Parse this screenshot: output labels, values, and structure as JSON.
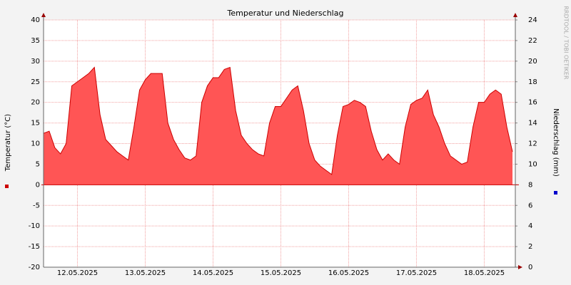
{
  "chart_data": {
    "type": "area",
    "title": "Temperatur und Niederschlag",
    "ylabel": "Temperatur (°C)",
    "y2label": "Niederschlag (mm)",
    "side_text": "RRDTOOL / TOBI OETIKER",
    "x": [
      0,
      2,
      4,
      6,
      8,
      10,
      12,
      14,
      16,
      18,
      20,
      22,
      24,
      26,
      28,
      30,
      32,
      34,
      36,
      38,
      40,
      42,
      44,
      46,
      48,
      50,
      52,
      54,
      56,
      58,
      60,
      62,
      64,
      66,
      68,
      70,
      72,
      74,
      76,
      78,
      80,
      82,
      84,
      86,
      88,
      90,
      92,
      94,
      96,
      98,
      100,
      102,
      104,
      106,
      108,
      110,
      112,
      114,
      116,
      118,
      120,
      122,
      124,
      126,
      128,
      130,
      132,
      134,
      136,
      138,
      140,
      142,
      144,
      146,
      148,
      150,
      152,
      154,
      156,
      158,
      160,
      162,
      164,
      166
    ],
    "series": [
      {
        "color": "#ff5555",
        "line_color": "#cc0000",
        "values": [
          12.5,
          13,
          9,
          7.5,
          10,
          24,
          25,
          26,
          27,
          28.5,
          17,
          11,
          9.5,
          8,
          7,
          6,
          14,
          23,
          25.5,
          27,
          27,
          27,
          15,
          11,
          8.5,
          6.5,
          6,
          7,
          20,
          24,
          26,
          26,
          28,
          28.5,
          18,
          12,
          10,
          8.5,
          7.5,
          7,
          15,
          19,
          19,
          21,
          23,
          24,
          18,
          10,
          6,
          4.5,
          3.5,
          2.5,
          12,
          19,
          19.5,
          20.5,
          20,
          19,
          13,
          8.5,
          6,
          7.5,
          6,
          5,
          14,
          19.5,
          20.5,
          21,
          23,
          17,
          14,
          10,
          7,
          6,
          5,
          5.5,
          14,
          20,
          20,
          22,
          23,
          22,
          14,
          8
        ]
      }
    ],
    "legend_markers": {
      "y": "#cc0000",
      "y2": "#0000cc"
    },
    "xlim": [
      0,
      167
    ],
    "xticks": [
      {
        "value": 12,
        "label": "12.05.2025"
      },
      {
        "value": 36,
        "label": "13.05.2025"
      },
      {
        "value": 60,
        "label": "14.05.2025"
      },
      {
        "value": 84,
        "label": "15.05.2025"
      },
      {
        "value": 108,
        "label": "16.05.2025"
      },
      {
        "value": 132,
        "label": "17.05.2025"
      },
      {
        "value": 156,
        "label": "18.05.2025"
      }
    ],
    "ylim": [
      -20,
      40
    ],
    "yticks": [
      -20,
      -15,
      -10,
      -5,
      0,
      5,
      10,
      15,
      20,
      25,
      30,
      35,
      40
    ],
    "y2lim": [
      0,
      24
    ],
    "y2ticks": [
      0,
      2,
      4,
      6,
      8,
      10,
      12,
      14,
      16,
      18,
      20,
      22,
      24
    ],
    "grid": true
  }
}
